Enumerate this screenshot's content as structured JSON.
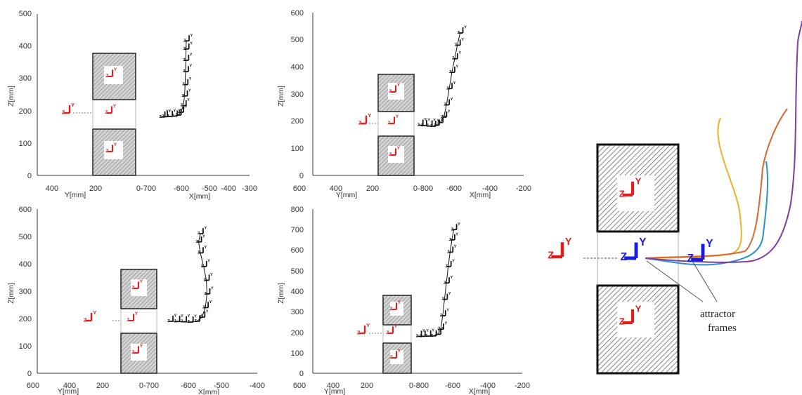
{
  "chart_data": [
    {
      "type": "line",
      "panel": "top-left",
      "ylabel": "Z[mm]",
      "y_ticks": [
        "0",
        "100",
        "200",
        "300",
        "400",
        "500"
      ],
      "ylim": [
        0,
        500
      ],
      "y_axis_label": "Y[mm]",
      "y_axis_ticks": [
        "400",
        "200"
      ],
      "x_axis_label": "X[mm]",
      "x_axis_ticks": [
        "200",
        "0-700",
        "-600",
        "-500",
        "-400",
        "-300"
      ],
      "obstacle_z_ranges": [
        [
          0,
          145
        ],
        [
          260,
          375
        ]
      ],
      "gap_z": [
        145,
        260
      ],
      "start_frame": {
        "z": 190
      },
      "series": [
        {
          "values_x": [
            -650,
            -640,
            -620,
            -600,
            -585,
            -575,
            -565,
            -560,
            -558,
            -556,
            -555,
            -554,
            -553
          ],
          "values_z": [
            180,
            181,
            182,
            183,
            186,
            195,
            215,
            245,
            280,
            320,
            355,
            390,
            415
          ]
        }
      ]
    },
    {
      "type": "line",
      "panel": "top-middle",
      "ylabel": "Z[mm]",
      "y_ticks": [
        "0",
        "100",
        "200",
        "300",
        "400",
        "500",
        "600"
      ],
      "ylim": [
        0,
        600
      ],
      "y_axis_label": "Y[mm]",
      "y_axis_ticks": [
        "600",
        "400",
        "200"
      ],
      "x_axis_label": "X[mm]",
      "x_axis_ticks": [
        "0-800",
        "-600",
        "-400",
        "-200"
      ],
      "obstacle_z_ranges": [
        [
          0,
          150
        ],
        [
          235,
          375
        ]
      ],
      "gap_z": [
        150,
        235
      ],
      "start_frame": {
        "z": 195
      },
      "series": [
        {
          "values_x": [
            -770,
            -750,
            -720,
            -700,
            -680,
            -660,
            -640,
            -625,
            -610,
            -595,
            -580,
            -565,
            -550
          ],
          "values_z": [
            185,
            184,
            182,
            181,
            185,
            195,
            215,
            260,
            320,
            380,
            430,
            480,
            525
          ]
        }
      ]
    },
    {
      "type": "line",
      "panel": "bottom-left",
      "ylabel": "Z[mm]",
      "y_ticks": [
        "0",
        "100",
        "200",
        "300",
        "400",
        "500",
        "600"
      ],
      "ylim": [
        0,
        600
      ],
      "y_axis_label": "Y[mm]",
      "y_axis_ticks": [
        "600",
        "400",
        "200"
      ],
      "x_axis_label": "X[mm]",
      "x_axis_ticks": [
        "0-700",
        "-600",
        "-500",
        "-400"
      ],
      "obstacle_z_ranges": [
        [
          0,
          145
        ],
        [
          240,
          380
        ]
      ],
      "gap_z": [
        145,
        240
      ],
      "start_frame": {
        "z": 195
      },
      "series": [
        {
          "values_x": [
            -660,
            -640,
            -620,
            -600,
            -580,
            -565,
            -555,
            -550,
            -552,
            -560,
            -570,
            -575,
            -570
          ],
          "values_z": [
            190,
            189,
            188,
            187,
            190,
            205,
            240,
            290,
            340,
            390,
            440,
            480,
            510
          ]
        }
      ]
    },
    {
      "type": "line",
      "panel": "bottom-middle",
      "ylabel": "Z[mm]",
      "y_ticks": [
        "0",
        "100",
        "200",
        "300",
        "400",
        "500",
        "600",
        "700",
        "800"
      ],
      "ylim": [
        0,
        800
      ],
      "y_axis_label": "Y[mm]",
      "y_axis_ticks": [
        "600",
        "400",
        "200"
      ],
      "x_axis_label": "X[mm]",
      "x_axis_ticks": [
        "0-800",
        "-600",
        "-400",
        "-200"
      ],
      "obstacle_z_ranges": [
        [
          0,
          145
        ],
        [
          240,
          380
        ]
      ],
      "gap_z": [
        145,
        240
      ],
      "start_frame": {
        "z": 195
      },
      "series": [
        {
          "values_x": [
            -760,
            -740,
            -710,
            -680,
            -655,
            -640,
            -630,
            -620,
            -610,
            -600,
            -590,
            -580,
            -570
          ],
          "values_z": [
            180,
            180,
            181,
            182,
            190,
            215,
            280,
            360,
            440,
            520,
            590,
            650,
            700
          ]
        }
      ]
    }
  ],
  "right_panel": {
    "annotation_line1": "attractor",
    "annotation_line2": "frames",
    "frame_labels": {
      "y": "Y",
      "z": "Z"
    },
    "curve_colors": [
      "#f0b02a",
      "#d9662a",
      "#2b8fd0",
      "#7a3fa0"
    ]
  },
  "colors": {
    "start_frame": "#e01e1e",
    "attractor_frame": "#1a1ae0",
    "obstacle_fill": "#c8c8c8",
    "trajectory": "#111111"
  }
}
